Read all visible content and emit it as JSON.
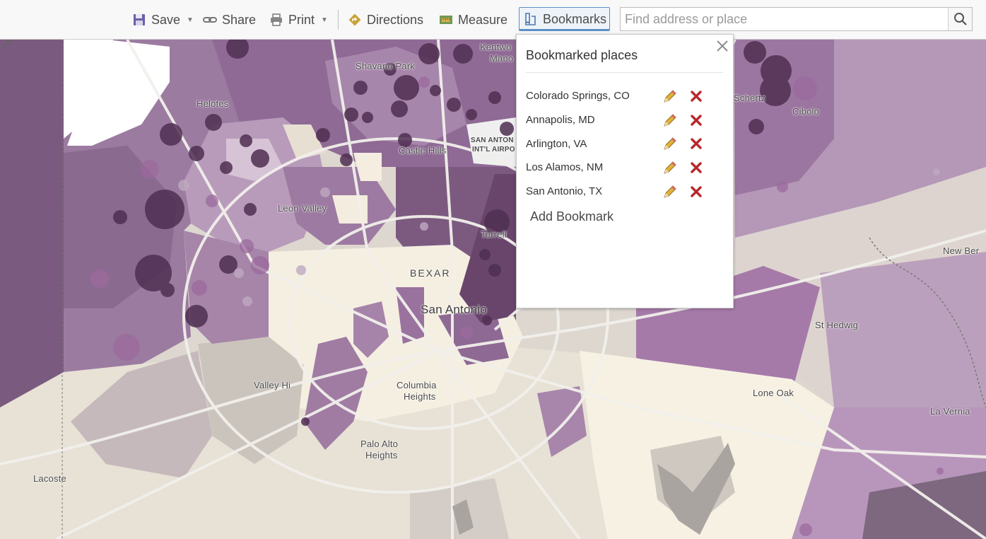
{
  "toolbar": {
    "save_label": "Save",
    "share_label": "Share",
    "print_label": "Print",
    "directions_label": "Directions",
    "measure_label": "Measure",
    "bookmarks_label": "Bookmarks"
  },
  "search": {
    "placeholder": "Find address or place",
    "value": ""
  },
  "bookmarks_panel": {
    "title": "Bookmarked places",
    "items": [
      {
        "label": "Colorado Springs, CO"
      },
      {
        "label": "Annapolis, MD"
      },
      {
        "label": "Arlington, VA"
      },
      {
        "label": "Los Alamos, NM"
      },
      {
        "label": "San Antonio, TX"
      }
    ],
    "add_label": "Add Bookmark"
  },
  "map": {
    "labels": {
      "shavano_park": "Shavano Park",
      "kentwood": "Kentwo",
      "manor": "Mano",
      "helotes": "Helotes",
      "castle_hills": "Castle Hills",
      "airport_1": "SAN ANTON",
      "airport_2": "INT'L AIRPO",
      "leon_valley": "Leon Valley",
      "terrell": "Terrell",
      "bexar": "BEXAR",
      "san_antonio": "San Antonio",
      "valley_hi": "Valley Hi",
      "columbia_1": "Columbia",
      "columbia_2": "Heights",
      "palo_alto_1": "Palo Alto",
      "palo_alto_2": "Heights",
      "lacoste": "Lacoste",
      "schertz": "Schertz",
      "cibolo": "Cibolo",
      "new_berlin": "New Ber",
      "st_hedwig": "St Hedwig",
      "lone_oak": "Lone Oak",
      "la_vernia": "La Vernia"
    },
    "colors": {
      "base": "#e9e6df",
      "light": "#f5efe2",
      "purple_light": "#c9a9c9",
      "purple_mid": "#9b6f9c",
      "purple_dark": "#6e4a72",
      "bubble": "#4f2f52",
      "accent": "#5b8fc7",
      "delete": "#b8282b"
    }
  }
}
